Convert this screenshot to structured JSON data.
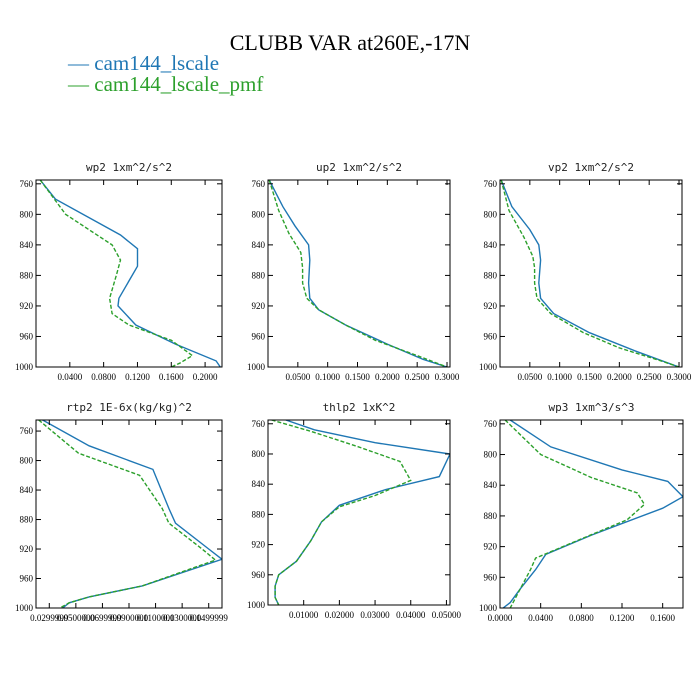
{
  "figure": {
    "title": "CLUBB VAR at260E,-17N",
    "legend": [
      {
        "label": "— cam144_lscale",
        "color": "#1f77b4"
      },
      {
        "label": "— cam144_lscale_pmf",
        "color": "#2ca02c"
      }
    ]
  },
  "chart_data": [
    {
      "type": "line",
      "title": "wp2   1xm^2/s^2",
      "xlim": [
        0,
        0.22
      ],
      "ylim": [
        1000,
        755
      ],
      "y_inverted": true,
      "xticks": [
        0.04,
        0.08,
        0.12,
        0.16,
        0.2
      ],
      "xtick_labels": [
        "0.0400",
        "0.0800",
        "0.1200",
        "0.1600",
        "0.2000"
      ],
      "yticks": [
        760,
        800,
        840,
        880,
        920,
        960,
        1000
      ],
      "ytick_labels": [
        "760",
        "800",
        "840",
        "880",
        "920",
        "960",
        "1000"
      ],
      "series": [
        {
          "name": "cam144_lscale",
          "color": "#1f77b4",
          "dash": "",
          "x": [
            0.005,
            0.023,
            0.1,
            0.12,
            0.12,
            0.098,
            0.097,
            0.118,
            0.165,
            0.213,
            0.218
          ],
          "y": [
            755,
            780,
            827,
            845,
            868,
            910,
            920,
            945,
            970,
            992,
            1000
          ]
        },
        {
          "name": "cam144_lscale_pmf",
          "color": "#2ca02c",
          "dash": "4,2",
          "x": [
            0.005,
            0.035,
            0.09,
            0.1,
            0.095,
            0.087,
            0.09,
            0.11,
            0.16,
            0.185,
            0.17,
            0.16
          ],
          "y": [
            755,
            800,
            840,
            860,
            880,
            910,
            930,
            945,
            965,
            985,
            995,
            1000
          ]
        }
      ]
    },
    {
      "type": "line",
      "title": "up2   1xm^2/s^2",
      "xlim": [
        0,
        0.305
      ],
      "ylim": [
        1000,
        755
      ],
      "y_inverted": true,
      "xticks": [
        0.05,
        0.1,
        0.15,
        0.2,
        0.25,
        0.3
      ],
      "xtick_labels": [
        "0.0500",
        "0.1000",
        "0.1500",
        "0.2000",
        "0.2500",
        "0.3000"
      ],
      "yticks": [
        760,
        800,
        840,
        880,
        920,
        960,
        1000
      ],
      "ytick_labels": [
        "760",
        "800",
        "840",
        "880",
        "920",
        "960",
        "1000"
      ],
      "series": [
        {
          "name": "cam144_lscale",
          "color": "#1f77b4",
          "dash": "",
          "x": [
            0.002,
            0.025,
            0.045,
            0.068,
            0.07,
            0.068,
            0.07,
            0.085,
            0.13,
            0.2,
            0.26,
            0.3
          ],
          "y": [
            755,
            790,
            815,
            840,
            860,
            890,
            910,
            925,
            945,
            970,
            990,
            1000
          ]
        },
        {
          "name": "cam144_lscale_pmf",
          "color": "#2ca02c",
          "dash": "4,2",
          "x": [
            0.002,
            0.018,
            0.035,
            0.055,
            0.058,
            0.058,
            0.065,
            0.085,
            0.13,
            0.18,
            0.25,
            0.3
          ],
          "y": [
            755,
            795,
            825,
            850,
            870,
            890,
            910,
            925,
            945,
            965,
            985,
            1000
          ]
        }
      ]
    },
    {
      "type": "line",
      "title": "vp2   1xm^2/s^2",
      "xlim": [
        0,
        0.305
      ],
      "ylim": [
        1000,
        755
      ],
      "y_inverted": true,
      "xticks": [
        0.05,
        0.1,
        0.15,
        0.2,
        0.25,
        0.3
      ],
      "xtick_labels": [
        "0.0500",
        "0.1000",
        "0.1500",
        "0.2000",
        "0.2500",
        "0.3000"
      ],
      "yticks": [
        760,
        800,
        840,
        880,
        920,
        960,
        1000
      ],
      "ytick_labels": [
        "760",
        "800",
        "840",
        "880",
        "920",
        "960",
        "1000"
      ],
      "series": [
        {
          "name": "cam144_lscale",
          "color": "#1f77b4",
          "dash": "",
          "x": [
            0.002,
            0.02,
            0.05,
            0.065,
            0.068,
            0.065,
            0.068,
            0.09,
            0.15,
            0.23,
            0.3
          ],
          "y": [
            755,
            790,
            820,
            840,
            860,
            890,
            910,
            930,
            955,
            980,
            1000
          ]
        },
        {
          "name": "cam144_lscale_pmf",
          "color": "#2ca02c",
          "dash": "4,2",
          "x": [
            0.002,
            0.015,
            0.04,
            0.055,
            0.058,
            0.058,
            0.062,
            0.085,
            0.14,
            0.2,
            0.27,
            0.3
          ],
          "y": [
            755,
            795,
            830,
            855,
            870,
            890,
            910,
            930,
            955,
            975,
            992,
            1000
          ]
        }
      ]
    },
    {
      "type": "line",
      "title": "rtp2   1E-6x(kg/kg)^2",
      "xlim": [
        0.02,
        0.16
      ],
      "ylim": [
        1000,
        745
      ],
      "y_inverted": true,
      "xticks": [
        0.03,
        0.05,
        0.07,
        0.09,
        0.11,
        0.13,
        0.15
      ],
      "xtick_labels": [
        "0.0299999",
        "0.0500000",
        "0.0699999",
        "0.0900000",
        "0.1100000",
        "0.1300000",
        "0.1499999"
      ],
      "yticks": [
        760,
        800,
        840,
        880,
        920,
        960,
        1000
      ],
      "ytick_labels": [
        "760",
        "800",
        "840",
        "880",
        "920",
        "960",
        "1000"
      ],
      "series": [
        {
          "name": "cam144_lscale",
          "color": "#1f77b4",
          "dash": "",
          "x": [
            0.025,
            0.06,
            0.108,
            0.12,
            0.125,
            0.15,
            0.16,
            0.1,
            0.06,
            0.045,
            0.04
          ],
          "y": [
            745,
            780,
            812,
            865,
            885,
            920,
            934,
            970,
            985,
            993,
            1000
          ]
        },
        {
          "name": "cam144_lscale_pmf",
          "color": "#2ca02c",
          "dash": "4,2",
          "x": [
            0.022,
            0.052,
            0.098,
            0.115,
            0.12,
            0.145,
            0.155,
            0.1,
            0.06,
            0.045,
            0.038
          ],
          "y": [
            745,
            790,
            820,
            865,
            885,
            920,
            935,
            970,
            985,
            993,
            1000
          ]
        }
      ]
    },
    {
      "type": "line",
      "title": "thlp2   1xK^2",
      "xlim": [
        0,
        0.051
      ],
      "ylim": [
        1000,
        755
      ],
      "y_inverted": true,
      "xticks": [
        0.01,
        0.02,
        0.03,
        0.04,
        0.05
      ],
      "xtick_labels": [
        "0.01000",
        "0.02000",
        "0.03000",
        "0.04000",
        "0.05000"
      ],
      "yticks": [
        760,
        800,
        840,
        880,
        920,
        960,
        1000
      ],
      "ytick_labels": [
        "760",
        "800",
        "840",
        "880",
        "920",
        "960",
        "1000"
      ],
      "series": [
        {
          "name": "cam144_lscale",
          "color": "#1f77b4",
          "dash": "",
          "x": [
            0.005,
            0.013,
            0.03,
            0.051,
            0.048,
            0.033,
            0.02,
            0.015,
            0.012,
            0.008,
            0.003,
            0.002,
            0.002,
            0.003
          ],
          "y": [
            755,
            768,
            785,
            800,
            830,
            847,
            868,
            890,
            915,
            942,
            960,
            975,
            990,
            1000
          ]
        },
        {
          "name": "cam144_lscale_pmf",
          "color": "#2ca02c",
          "dash": "4,2",
          "x": [
            0.001,
            0.012,
            0.025,
            0.037,
            0.04,
            0.03,
            0.02,
            0.015,
            0.012,
            0.008,
            0.003,
            0.002,
            0.002,
            0.003
          ],
          "y": [
            755,
            770,
            790,
            810,
            835,
            855,
            870,
            890,
            915,
            942,
            960,
            975,
            990,
            1000
          ]
        }
      ]
    },
    {
      "type": "line",
      "title": "wp3   1xm^3/s^3",
      "xlim": [
        0,
        0.18
      ],
      "ylim": [
        1000,
        755
      ],
      "y_inverted": true,
      "xticks": [
        0,
        0.04,
        0.08,
        0.12,
        0.16
      ],
      "xtick_labels": [
        "0.0000",
        "0.0400",
        "0.0800",
        "0.1200",
        "0.1600"
      ],
      "yticks": [
        760,
        800,
        840,
        880,
        920,
        960,
        1000
      ],
      "ytick_labels": [
        "760",
        "800",
        "840",
        "880",
        "920",
        "960",
        "1000"
      ],
      "series": [
        {
          "name": "cam144_lscale",
          "color": "#1f77b4",
          "dash": "",
          "x": [
            0.01,
            0.05,
            0.12,
            0.165,
            0.18,
            0.16,
            0.09,
            0.045,
            0.035,
            0.02,
            0.01,
            0.003
          ],
          "y": [
            755,
            790,
            820,
            835,
            855,
            870,
            905,
            930,
            950,
            975,
            993,
            1000
          ]
        },
        {
          "name": "cam144_lscale_pmf",
          "color": "#2ca02c",
          "dash": "4,2",
          "x": [
            0.005,
            0.04,
            0.09,
            0.135,
            0.142,
            0.125,
            0.08,
            0.035,
            0.03,
            0.02,
            0.01
          ],
          "y": [
            755,
            800,
            830,
            850,
            865,
            885,
            910,
            935,
            950,
            975,
            1000
          ]
        }
      ]
    }
  ]
}
